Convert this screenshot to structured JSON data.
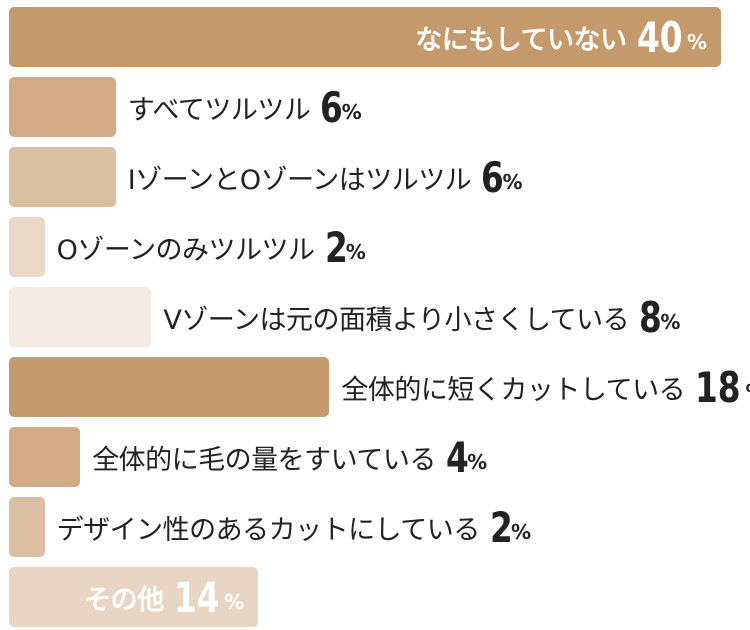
{
  "chart_data": {
    "type": "bar",
    "orientation": "horizontal",
    "title": "",
    "xlabel": "",
    "ylabel": "",
    "unit": "%",
    "xlim": [
      0,
      40
    ],
    "grid": false,
    "categories": [
      "なにもしていない",
      "すべてツルツル",
      "IゾーンとOゾーンはツルツル",
      "Oゾーンのみツルツル",
      "Vゾーンは元の面積より小さくしている",
      "全体的に短くカットしている",
      "全体的に毛の量をすいている",
      "デザイン性のあるカットにしている",
      "その他"
    ],
    "values": [
      40,
      6,
      6,
      2,
      8,
      18,
      4,
      2,
      14
    ],
    "colors": [
      "#c49a6c",
      "#d3aa86",
      "#dbbfa2",
      "#ead9c9",
      "#f4ebe3",
      "#c69a6c",
      "#d3aa86",
      "#dbbfa2",
      "#e8d5c4"
    ]
  }
}
